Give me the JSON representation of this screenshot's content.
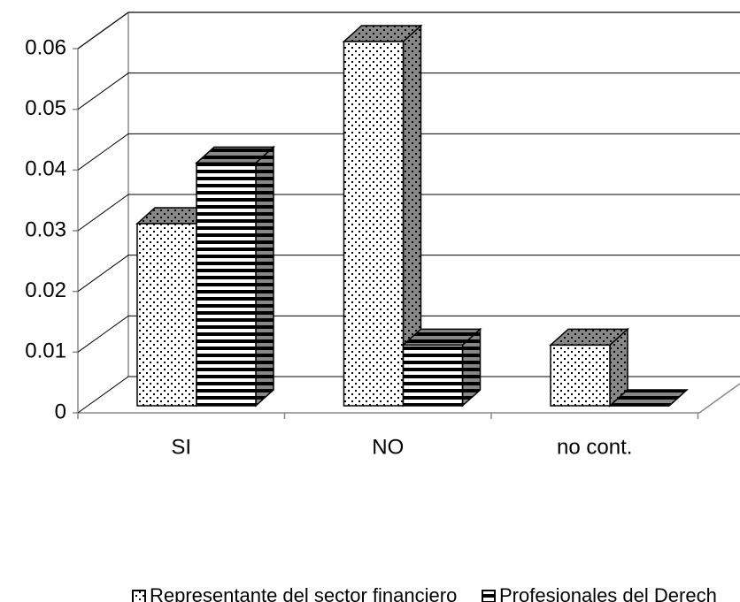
{
  "chart_data": {
    "type": "bar3d",
    "categories": [
      "SI",
      "NO",
      "no cont."
    ],
    "series": [
      {
        "name": "Representante del sector financiero",
        "color": "#ffffff",
        "pattern": "dots",
        "values": [
          0.03,
          0.06,
          0.01
        ]
      },
      {
        "name": "Profesionales del Derech",
        "color": "#ffffff",
        "pattern": "stripes",
        "values": [
          0.04,
          0.01,
          0
        ]
      }
    ],
    "ylim": [
      0,
      0.06
    ],
    "yticks": [
      0,
      0.01,
      0.02,
      0.03,
      0.04,
      0.05,
      0.06
    ],
    "grid": true,
    "legend": "bottom"
  }
}
